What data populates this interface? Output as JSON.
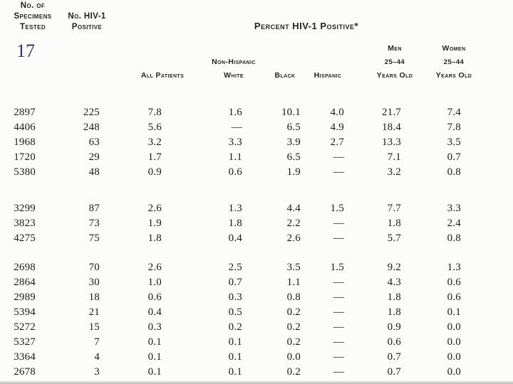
{
  "page": {
    "page_number": "17",
    "ink_color": "#1b1b1b",
    "annotation_color": "#31317c",
    "paper_color": "#fcfcfb"
  },
  "table": {
    "title": "Percent HIV-1 Positive*",
    "row_headers": {
      "specimens_tested": [
        "No. of",
        "Specimens",
        "Tested"
      ],
      "hiv_positive": [
        "No. HIV-1",
        "Positive"
      ]
    },
    "sub_headers": [
      {
        "id": "all-patients",
        "lines": [
          "All Patients"
        ]
      },
      {
        "id": "non-hispanic-white",
        "lines": [
          "Non-Hispanic",
          "White"
        ]
      },
      {
        "id": "black",
        "lines": [
          "Black"
        ]
      },
      {
        "id": "hispanic",
        "lines": [
          "Hispanic"
        ]
      },
      {
        "id": "men-25-44",
        "lines": [
          "Men",
          "25–44",
          "Years Old"
        ]
      },
      {
        "id": "women-25-44",
        "lines": [
          "Women",
          "25–44",
          "Years Old"
        ]
      }
    ],
    "columns": [
      "Specimens Tested",
      "No. HIV-1 Positive",
      "All Patients",
      "Non-Hispanic White",
      "Black",
      "Hispanic",
      "Men 25–44 Years Old",
      "Women 25–44 Years Old"
    ],
    "missing_value_symbol": "—",
    "groups": [
      {
        "rows": [
          [
            "2897",
            "225",
            "7.8",
            "1.6",
            "10.1",
            "4.0",
            "21.7",
            "7.4"
          ],
          [
            "4406",
            "248",
            "5.6",
            "—",
            "6.5",
            "4.9",
            "18.4",
            "7.8"
          ],
          [
            "1968",
            "63",
            "3.2",
            "3.3",
            "3.9",
            "2.7",
            "13.3",
            "3.5"
          ],
          [
            "1720",
            "29",
            "1.7",
            "1.1",
            "6.5",
            "—",
            "7.1",
            "0.7"
          ],
          [
            "5380",
            "48",
            "0.9",
            "0.6",
            "1.9",
            "—",
            "3.2",
            "0.8"
          ]
        ]
      },
      {
        "rows": [
          [
            "3299",
            "87",
            "2.6",
            "1.3",
            "4.4",
            "1.5",
            "7.7",
            "3.3"
          ],
          [
            "3823",
            "73",
            "1.9",
            "1.8",
            "2.2",
            "—",
            "1.8",
            "2.4"
          ],
          [
            "4275",
            "75",
            "1.8",
            "0.4",
            "2.6",
            "—",
            "5.7",
            "0.8"
          ]
        ]
      },
      {
        "rows": [
          [
            "2698",
            "70",
            "2.6",
            "2.5",
            "3.5",
            "1.5",
            "9.2",
            "1.3"
          ],
          [
            "2864",
            "30",
            "1.0",
            "0.7",
            "1.1",
            "—",
            "4.3",
            "0.6"
          ],
          [
            "2989",
            "18",
            "0.6",
            "0.3",
            "0.8",
            "—",
            "1.8",
            "0.6"
          ],
          [
            "5394",
            "21",
            "0.4",
            "0.5",
            "0.2",
            "—",
            "1.8",
            "0.1"
          ],
          [
            "5272",
            "15",
            "0.3",
            "0.2",
            "0.2",
            "—",
            "0.9",
            "0.0"
          ],
          [
            "5327",
            "7",
            "0.1",
            "0.1",
            "0.2",
            "—",
            "0.6",
            "0.0"
          ],
          [
            "3364",
            "4",
            "0.1",
            "0.1",
            "0.0",
            "—",
            "0.7",
            "0.0"
          ],
          [
            "2678",
            "3",
            "0.1",
            "0.1",
            "0.2",
            "—",
            "0.7",
            "0.0"
          ]
        ]
      }
    ]
  }
}
